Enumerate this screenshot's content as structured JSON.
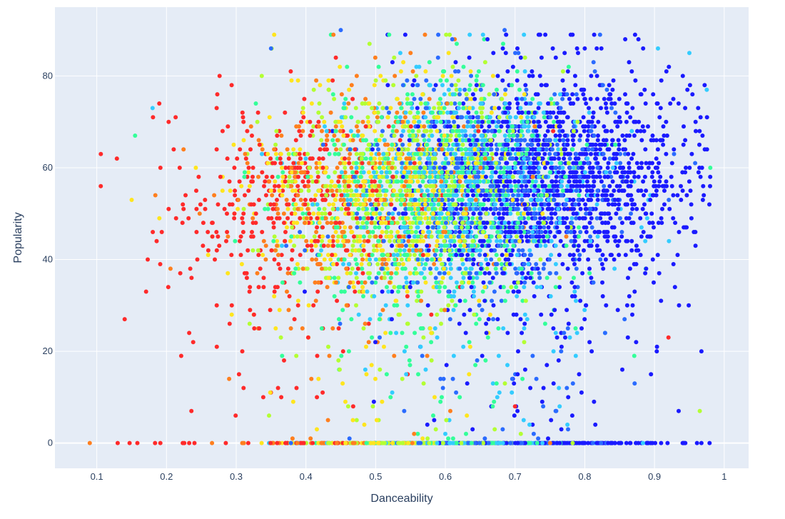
{
  "chart_data": {
    "type": "scatter",
    "title": "",
    "xlabel": "Danceability",
    "ylabel": "Popularity",
    "xlim": [
      0.04,
      1.035
    ],
    "ylim": [
      -5.5,
      95
    ],
    "x_ticks": [
      "0.1",
      "0.2",
      "0.3",
      "0.4",
      "0.5",
      "0.6",
      "0.7",
      "0.8",
      "0.9",
      "1"
    ],
    "x_tick_values": [
      0.1,
      0.2,
      0.3,
      0.4,
      0.5,
      0.6,
      0.7,
      0.8,
      0.9,
      1.0
    ],
    "y_ticks": [
      "0",
      "20",
      "40",
      "60",
      "80"
    ],
    "y_tick_values": [
      0,
      20,
      40,
      60,
      80
    ],
    "grid": true,
    "legend": "none",
    "plot_background": "#e5ecf6",
    "grid_color": "#ffffff",
    "marker_colorscale": [
      "#ff2a2a",
      "#ff7f1e",
      "#ffe51e",
      "#b3ff33",
      "#33ff99",
      "#33ccff",
      "#2a6bff",
      "#1a1aff"
    ],
    "point_count_estimate": 6000,
    "notable_points": [
      {
        "x": 0.09,
        "y": 0,
        "color": "#ff7f1e"
      },
      {
        "x": 0.13,
        "y": 0,
        "color": "#ff2a2a"
      },
      {
        "x": 0.14,
        "y": 27,
        "color": "#ff2a2a"
      },
      {
        "x": 0.15,
        "y": 53,
        "color": "#ffe51e"
      },
      {
        "x": 0.155,
        "y": 67,
        "color": "#33ff99"
      },
      {
        "x": 0.18,
        "y": 73,
        "color": "#33ccff"
      },
      {
        "x": 0.45,
        "y": 90,
        "color": "#2a6bff"
      },
      {
        "x": 0.685,
        "y": 90,
        "color": "#2a6bff"
      },
      {
        "x": 0.635,
        "y": 89,
        "color": "#33ccff"
      },
      {
        "x": 0.61,
        "y": 88,
        "color": "#2a6bff"
      },
      {
        "x": 0.35,
        "y": 86,
        "color": "#2a6bff"
      },
      {
        "x": 0.905,
        "y": 86,
        "color": "#33ccff"
      },
      {
        "x": 0.95,
        "y": 85,
        "color": "#33ccff"
      },
      {
        "x": 0.975,
        "y": 77,
        "color": "#33ccff"
      },
      {
        "x": 0.98,
        "y": 60,
        "color": "#33ff99"
      },
      {
        "x": 0.965,
        "y": 7,
        "color": "#b3ff33"
      },
      {
        "x": 0.92,
        "y": 23,
        "color": "#ff2a2a"
      },
      {
        "x": 0.7,
        "y": 8,
        "color": "#ff2a2a"
      },
      {
        "x": 0.36,
        "y": 12,
        "color": "#ff2a2a"
      }
    ]
  }
}
